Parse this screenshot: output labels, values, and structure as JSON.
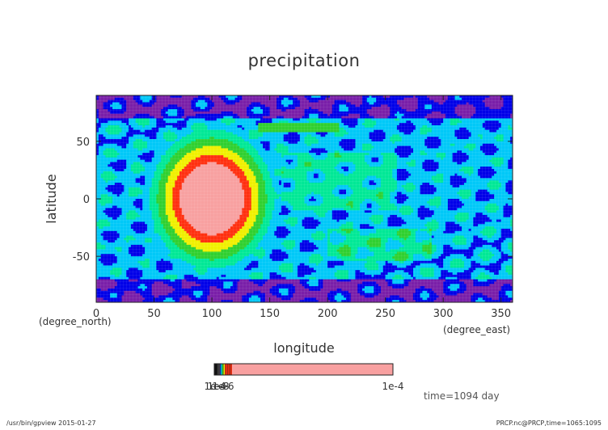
{
  "chart_data": {
    "type": "heatmap",
    "title": "precipitation",
    "xlabel": "longitude",
    "ylabel": "latitude",
    "x_unit": "(degree_east)",
    "y_unit": "(degree_north)",
    "xlim": [
      0,
      360
    ],
    "ylim": [
      -90,
      90
    ],
    "x_ticks": [
      0,
      50,
      100,
      150,
      200,
      250,
      300,
      350
    ],
    "y_ticks": [
      -50,
      0,
      50
    ],
    "features": [
      {
        "name": "heating-center",
        "lon": 100,
        "lat": 0,
        "radius_lon": 40,
        "radius_lat": 45,
        "level_max": 8
      },
      {
        "name": "jet-arm",
        "lon_start": 140,
        "lon_end": 210,
        "lat": 62,
        "level": 4
      }
    ],
    "levels": [
      "#7a1fa8",
      "#0000e8",
      "#00c8f8",
      "#00e896",
      "#30d030",
      "#f0f000",
      "#ff3010",
      "#f8a0a0"
    ],
    "colorbar": {
      "tick_labels": [
        "1e-4",
        "1e-8",
        "1e-6"
      ],
      "overlap_label": "1e-8",
      "end_label": "1e-4",
      "segments": [
        "#111111",
        "#444444",
        "#0000e8",
        "#00c8f8",
        "#00e896",
        "#30d030",
        "#f0f000",
        "#ff3010",
        "#ff3010",
        "#f8a0a0"
      ]
    },
    "time_label": "time=1094 day"
  },
  "footer": {
    "left": "/usr/bin/gpview  2015-01-27",
    "right": "PRCP.nc@PRCP,time=1065:1095"
  }
}
